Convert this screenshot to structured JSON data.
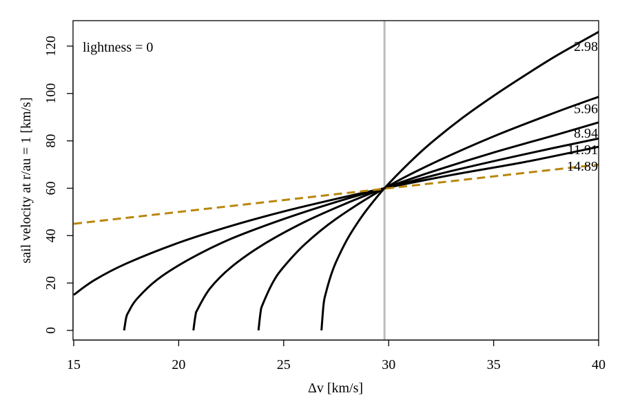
{
  "chart_data": {
    "type": "line",
    "title": "",
    "xlabel": "Δv [km/s]",
    "ylabel": "sail velocity at r/au = 1   [km/s]",
    "xlim": [
      14.9,
      40
    ],
    "ylim": [
      -4,
      131
    ],
    "xticks": [
      15,
      20,
      25,
      30,
      35,
      40
    ],
    "yticks": [
      0,
      20,
      40,
      60,
      80,
      100,
      120
    ],
    "grid": false,
    "annotation": "lightness =  0",
    "reference_line": {
      "x": 29.8,
      "color": "#bbbbbb"
    },
    "series": [
      {
        "name": "2.98",
        "color": "#000000",
        "style": "solid",
        "x": [
          26.8,
          26.9,
          27,
          27.25,
          27.5,
          28,
          28.5,
          29,
          29.8,
          31,
          32,
          33.5,
          35,
          36.5,
          38,
          40
        ],
        "y": [
          0,
          11,
          15.5,
          23.2,
          29,
          38,
          45.2,
          51.4,
          60,
          70.9,
          79,
          89.6,
          99,
          107.7,
          116,
          126
        ]
      },
      {
        "name": "5.96",
        "color": "#000000",
        "style": "solid",
        "x": [
          23.8,
          23.9,
          24,
          24.5,
          25,
          26,
          27.5,
          29.8,
          32,
          35,
          38,
          40
        ],
        "y": [
          0,
          7.7,
          11,
          20.5,
          26.8,
          36.3,
          47.1,
          60,
          70.1,
          81.9,
          92.2,
          98.6
        ]
      },
      {
        "name": "8.94",
        "color": "#000000",
        "style": "solid",
        "x": [
          20.7,
          20.8,
          20.9,
          21.5,
          22.5,
          24,
          26,
          28,
          29.8,
          32,
          35,
          38,
          40
        ],
        "y": [
          0,
          6.3,
          8.9,
          17.8,
          26.7,
          36.1,
          45.8,
          53.7,
          60,
          66.8,
          75.1,
          82.6,
          87.8
        ]
      },
      {
        "name": "11.91",
        "color": "#000000",
        "style": "solid",
        "x": [
          17.4,
          17.5,
          17.6,
          18,
          19,
          20.5,
          22.5,
          25,
          27.5,
          29.8,
          33,
          36.5,
          40
        ],
        "y": [
          0,
          5.4,
          7.6,
          13.2,
          21.6,
          30,
          38.7,
          47,
          54.2,
          60,
          67.3,
          74.4,
          81
        ]
      },
      {
        "name": "14.89",
        "color": "#000000",
        "style": "solid",
        "x": [
          15,
          16,
          17.5,
          20,
          22.5,
          25,
          27.5,
          29.8,
          33,
          36.5,
          40
        ],
        "y": [
          15,
          21.3,
          28.2,
          37,
          44.1,
          50.2,
          55.5,
          60,
          65.6,
          71.1,
          77.5
        ]
      },
      {
        "name": "lightness 0",
        "color": "#b8860b",
        "style": "dashed",
        "x": [
          15,
          40
        ],
        "y": [
          45,
          70
        ]
      }
    ],
    "series_labels": [
      {
        "text": "2.98",
        "y": 118
      },
      {
        "text": "5.96",
        "y": 91.6
      },
      {
        "text": "8.94",
        "y": 81.4
      },
      {
        "text": "11.91",
        "y": 75
      },
      {
        "text": "14.89",
        "y": 70.6
      }
    ]
  }
}
